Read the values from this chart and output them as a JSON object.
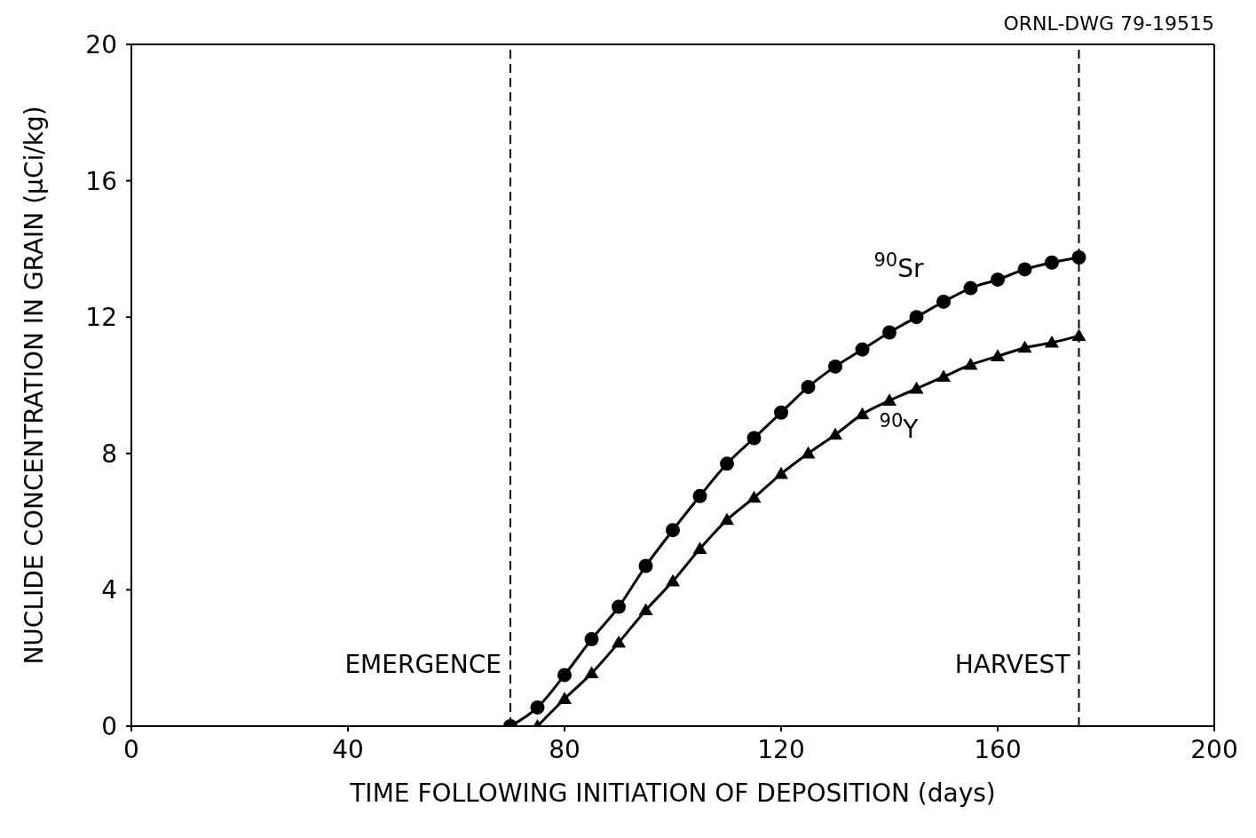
{
  "chart_data": {
    "type": "line",
    "xlabel": "TIME FOLLOWING INITIATION OF DEPOSITION (days)",
    "ylabel": "NUCLIDE CONCENTRATION IN GRAIN (μCi/kg)",
    "annotations": [
      "ORNL-DWG 79-19515"
    ],
    "xlim": [
      0,
      200
    ],
    "xticks": [
      0,
      40,
      80,
      120,
      160,
      200
    ],
    "ylim": [
      0,
      20
    ],
    "yticks": [
      0,
      4,
      8,
      12,
      16,
      20
    ],
    "grid": false,
    "legend": false,
    "line_style": "solid",
    "series": [
      {
        "name": "$^{90}$Sr",
        "color": "#000000",
        "marker": "circle",
        "x": [
          70,
          75,
          80,
          85,
          90,
          95,
          100,
          105,
          110,
          115,
          120,
          125,
          130,
          135,
          140,
          145,
          150,
          155,
          160,
          165,
          170,
          175
        ],
        "values": [
          0,
          0.55,
          1.5,
          2.55,
          3.5,
          4.7,
          5.75,
          6.75,
          7.7,
          8.45,
          9.2,
          9.95,
          10.55,
          11.05,
          11.55,
          12.0,
          12.45,
          12.85,
          13.1,
          13.4,
          13.6,
          13.75
        ]
      },
      {
        "name": "$^{90}$Y",
        "color": "#000000",
        "marker": "triangle",
        "x": [
          75,
          80,
          85,
          90,
          95,
          100,
          105,
          110,
          115,
          120,
          125,
          130,
          135,
          140,
          145,
          150,
          155,
          160,
          165,
          170,
          175
        ],
        "values": [
          0,
          0.8,
          1.55,
          2.45,
          3.4,
          4.25,
          5.2,
          6.05,
          6.7,
          7.4,
          8.0,
          8.55,
          9.15,
          9.55,
          9.9,
          10.25,
          10.6,
          10.85,
          11.1,
          11.25,
          11.45
        ]
      }
    ],
    "ref_lines": [
      {
        "axis": "x",
        "value": 70,
        "label": "EMERGENCE",
        "line_style": "dashed",
        "color": "#000000"
      },
      {
        "axis": "x",
        "value": 175,
        "label": "HARVEST",
        "line_style": "dashed",
        "color": "#000000"
      }
    ]
  }
}
